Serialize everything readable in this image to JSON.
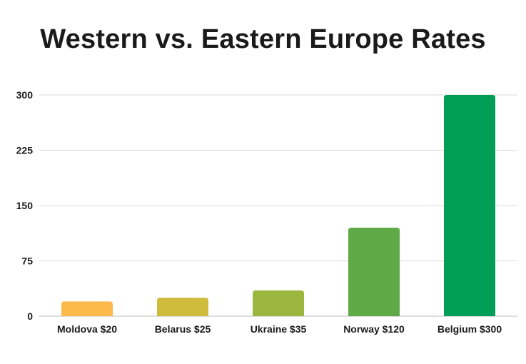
{
  "chart_data": {
    "type": "bar",
    "title": "Western vs. Eastern Europe Rates",
    "categories": [
      "Moldova $20",
      "Belarus $25",
      "Ukraine $35",
      "Norway $120",
      "Belgium $300"
    ],
    "values": [
      20,
      25,
      35,
      120,
      300
    ],
    "colors": [
      "#FDB94B",
      "#CFBC3C",
      "#9CB73D",
      "#5FAA47",
      "#009E56"
    ],
    "yticks": [
      0,
      75,
      150,
      225,
      300
    ],
    "ylim": [
      0,
      300
    ],
    "grid": true,
    "xlabel": "",
    "ylabel": ""
  }
}
